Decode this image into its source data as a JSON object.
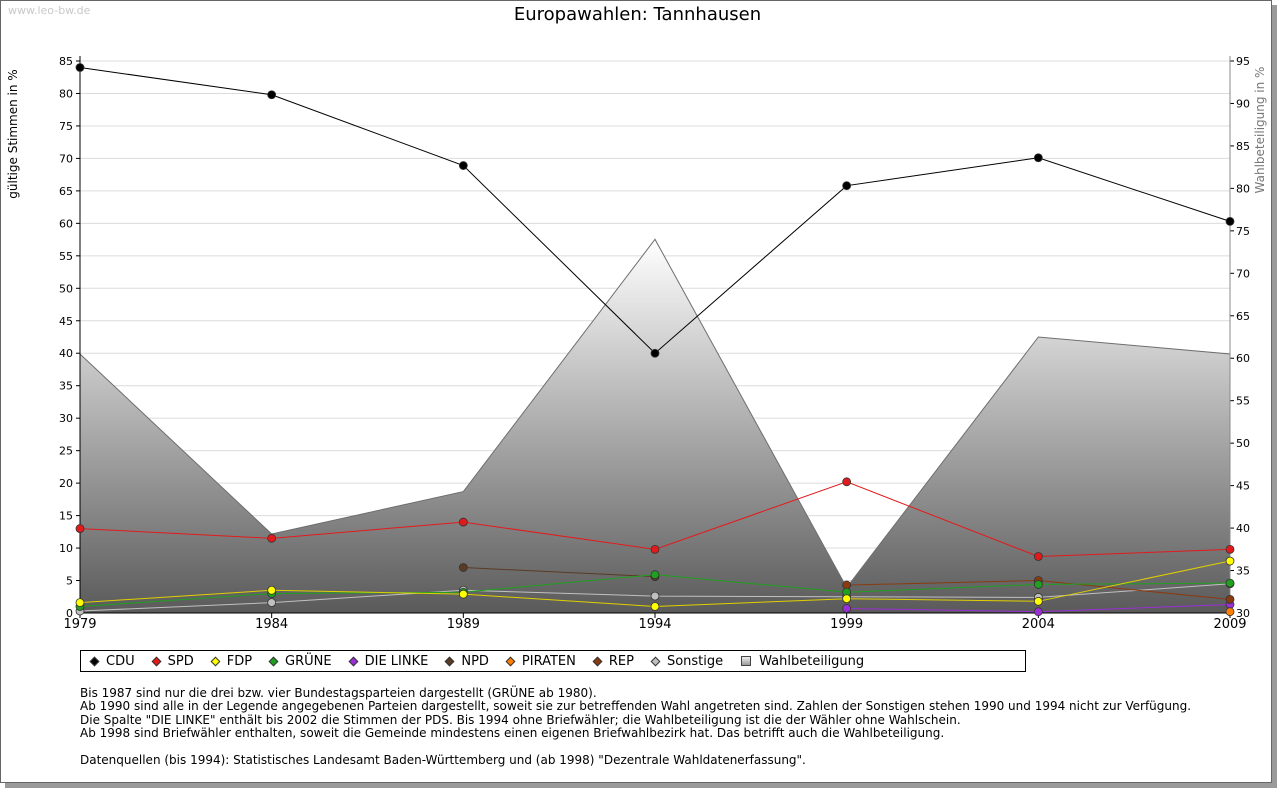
{
  "watermark": "www.leo-bw.de",
  "chart_data": {
    "type": "line",
    "title": "Europawahlen: Tannhausen",
    "ylabel": "gültige Stimmen in %",
    "y2label": "Wahlbeteiligung in %",
    "x": [
      "1979",
      "1984",
      "1989",
      "1994",
      "1999",
      "2004",
      "2009"
    ],
    "ylim": [
      0,
      85
    ],
    "y2lim": [
      30,
      95
    ],
    "yticks": [
      0,
      5,
      10,
      15,
      20,
      25,
      30,
      35,
      40,
      45,
      50,
      55,
      60,
      65,
      70,
      75,
      80,
      85
    ],
    "y2ticks": [
      30,
      35,
      40,
      45,
      50,
      55,
      60,
      65,
      70,
      75,
      80,
      85,
      90,
      95
    ],
    "grid": true,
    "series": [
      {
        "name": "CDU",
        "color": "#000000",
        "values": [
          84.0,
          79.8,
          68.9,
          40.0,
          65.8,
          70.1,
          60.3
        ]
      },
      {
        "name": "SPD",
        "color": "#e31a1c",
        "values": [
          13.0,
          11.5,
          14.0,
          9.8,
          20.2,
          8.7,
          9.8
        ]
      },
      {
        "name": "FDP",
        "color": "#ffff00",
        "values": [
          1.6,
          3.5,
          2.9,
          1.0,
          2.2,
          1.8,
          8.0
        ]
      },
      {
        "name": "GRÜNE",
        "color": "#1fa01f",
        "values": [
          1.0,
          3.0,
          3.2,
          5.9,
          3.2,
          4.4,
          4.6
        ]
      },
      {
        "name": "DIE LINKE",
        "color": "#9a2fd6",
        "values": [
          null,
          null,
          null,
          null,
          0.7,
          0.2,
          1.3
        ]
      },
      {
        "name": "NPD",
        "color": "#5a3a22",
        "values": [
          null,
          null,
          7.0,
          5.6,
          null,
          null,
          null
        ]
      },
      {
        "name": "PIRATEN",
        "color": "#ff7f00",
        "values": [
          null,
          null,
          null,
          null,
          null,
          null,
          0.2
        ]
      },
      {
        "name": "REP",
        "color": "#8b3a10",
        "values": [
          null,
          null,
          null,
          null,
          4.3,
          5.0,
          2.1
        ]
      },
      {
        "name": "Sonstige",
        "color": "#c0c0c0",
        "values": [
          0.3,
          1.6,
          3.5,
          2.6,
          2.5,
          2.4,
          4.5
        ]
      }
    ],
    "turnout": {
      "name": "Wahlbeteiligung",
      "values": [
        60.5,
        39.3,
        44.3,
        74.0,
        33.0,
        62.5,
        60.5
      ]
    }
  },
  "legend": [
    {
      "label": "CDU",
      "color": "#000000",
      "shape": "diamond"
    },
    {
      "label": "SPD",
      "color": "#e31a1c",
      "shape": "diamond"
    },
    {
      "label": "FDP",
      "color": "#ffff00",
      "shape": "diamond"
    },
    {
      "label": "GRÜNE",
      "color": "#1fa01f",
      "shape": "diamond"
    },
    {
      "label": "DIE LINKE",
      "color": "#9a2fd6",
      "shape": "diamond"
    },
    {
      "label": "NPD",
      "color": "#5a3a22",
      "shape": "diamond"
    },
    {
      "label": "PIRATEN",
      "color": "#ff7f00",
      "shape": "diamond"
    },
    {
      "label": "REP",
      "color": "#8b3a10",
      "shape": "diamond"
    },
    {
      "label": "Sonstige",
      "color": "#c0c0c0",
      "shape": "diamond"
    },
    {
      "label": "Wahlbeteiligung",
      "color": "#aaaaaa",
      "shape": "square"
    }
  ],
  "notes": [
    "Bis 1987 sind nur die drei bzw. vier Bundestagsparteien dargestellt (GRÜNE ab 1980).",
    "Ab 1990 sind alle in der Legende angegebenen Parteien dargestellt, soweit sie zur betreffenden Wahl angetreten sind. Zahlen der Sonstigen stehen 1990 und 1994 nicht zur Verfügung.",
    "Die Spalte \"DIE LINKE\" enthält bis 2002 die Stimmen der PDS. Bis 1994 ohne Briefwähler; die Wahlbeteiligung ist die der Wähler ohne Wahlschein.",
    "Ab 1998 sind Briefwähler enthalten, soweit die Gemeinde mindestens einen eigenen Briefwahlbezirk hat. Das betrifft auch die Wahlbeteiligung.",
    "",
    "Datenquellen (bis 1994): Statistisches Landesamt Baden-Württemberg und (ab 1998) \"Dezentrale Wahldatenerfassung\"."
  ]
}
